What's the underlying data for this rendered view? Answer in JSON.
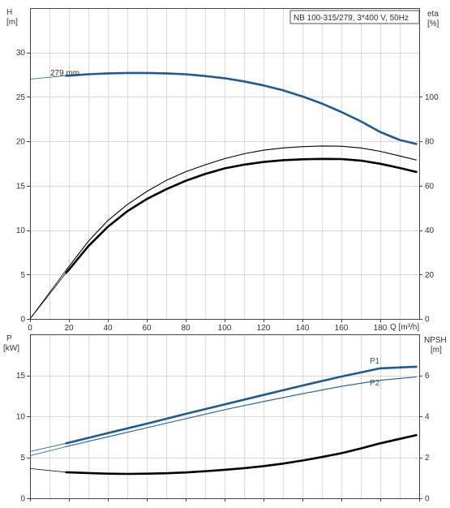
{
  "colors": {
    "blue": "#1f5b92",
    "black": "#000000",
    "grid": "#d9d9d9",
    "text": "#333333"
  },
  "chart_data": [
    {
      "type": "line",
      "title": "NB 100-315/279, 3*400 V, 50Hz",
      "xlabel": "Q [m³/h]",
      "xlim": [
        0,
        200
      ],
      "xticks": [
        0,
        20,
        40,
        60,
        80,
        100,
        120,
        140,
        160,
        180
      ],
      "left_axis": {
        "label_top": "H",
        "label_unit": "[m]",
        "ylim": [
          0,
          35
        ],
        "ticks": [
          0,
          5,
          10,
          15,
          20,
          25,
          30
        ]
      },
      "right_axis": {
        "label_top": "eta",
        "label_unit": "[%]",
        "ylim": [
          0,
          140
        ],
        "ticks": [
          0,
          20,
          40,
          60,
          80,
          100
        ]
      },
      "grid": true,
      "series": [
        {
          "name": "279 mm",
          "axis": "left",
          "color": "blue",
          "style": "bold",
          "x": [
            18.6,
            20,
            30,
            40,
            50,
            60,
            70,
            80,
            90,
            100,
            110,
            120,
            130,
            140,
            150,
            160,
            170,
            180,
            190,
            198.5
          ],
          "y": [
            27.4,
            27.4,
            27.55,
            27.65,
            27.7,
            27.7,
            27.65,
            27.55,
            27.35,
            27.1,
            26.75,
            26.3,
            25.75,
            25.05,
            24.25,
            23.3,
            22.25,
            21.05,
            20.15,
            19.7
          ],
          "ext_x": [
            0,
            18.6
          ],
          "ext_y": [
            27.0,
            27.4
          ]
        },
        {
          "name": "",
          "axis": "right",
          "color": "black",
          "style": "thin",
          "x": [
            18.6,
            20,
            30,
            40,
            50,
            60,
            70,
            80,
            90,
            100,
            110,
            120,
            130,
            140,
            150,
            160,
            170,
            180,
            190,
            198.5
          ],
          "y": [
            22,
            23.6,
            35,
            44.3,
            51.5,
            57.4,
            62.4,
            66.3,
            69.4,
            72.2,
            74.4,
            76,
            77,
            77.6,
            77.9,
            77.8,
            77,
            75.5,
            73.4,
            71.6
          ],
          "ext_x": [
            0,
            18.6
          ],
          "ext_y": [
            0,
            22
          ]
        },
        {
          "name": "",
          "axis": "right",
          "color": "black",
          "style": "bold",
          "x": [
            18.6,
            20,
            30,
            40,
            50,
            60,
            70,
            80,
            90,
            100,
            110,
            120,
            130,
            140,
            150,
            160,
            170,
            180,
            190,
            198.5
          ],
          "y": [
            20.8,
            22.2,
            32.8,
            41.5,
            48.5,
            54,
            58.4,
            62.2,
            65.3,
            67.8,
            69.5,
            70.7,
            71.5,
            71.9,
            72.1,
            72,
            71.3,
            69.9,
            68,
            66.2
          ],
          "ext_x": [
            0,
            18.6
          ],
          "ext_y": [
            0,
            20.8
          ]
        }
      ],
      "annotations": [
        {
          "text": "279 mm",
          "x": 12,
          "y": 27.6
        }
      ]
    },
    {
      "type": "line",
      "xlabel": "",
      "xlim": [
        0,
        200
      ],
      "left_axis": {
        "label_top": "P",
        "label_unit": "[kW]",
        "ylim": [
          0,
          20
        ],
        "ticks": [
          0,
          5,
          10,
          15
        ]
      },
      "right_axis": {
        "label_top": "NPSH",
        "label_unit": "[m]",
        "ylim": [
          0,
          8
        ],
        "ticks": [
          0,
          2,
          4,
          6
        ]
      },
      "grid": true,
      "series": [
        {
          "name": "P1",
          "axis": "left",
          "color": "blue",
          "style": "bold",
          "x": [
            18.6,
            40,
            60,
            80,
            100,
            120,
            140,
            160,
            180,
            198.5
          ],
          "y": [
            6.7,
            7.95,
            9.1,
            10.3,
            11.45,
            12.6,
            13.75,
            14.85,
            15.85,
            16.05
          ],
          "ext_x": [
            0,
            18.6
          ],
          "ext_y": [
            5.7,
            6.7
          ]
        },
        {
          "name": "P2",
          "axis": "left",
          "color": "blue",
          "style": "thin",
          "x": [
            18.6,
            40,
            60,
            80,
            100,
            120,
            140,
            160,
            180,
            198.5
          ],
          "y": [
            6.3,
            7.5,
            8.6,
            9.7,
            10.8,
            11.8,
            12.75,
            13.65,
            14.4,
            14.8
          ],
          "ext_x": [
            0,
            18.6
          ],
          "ext_y": [
            5.2,
            6.3
          ]
        },
        {
          "name": "",
          "axis": "right",
          "color": "black",
          "style": "bold",
          "x": [
            18.6,
            30,
            40,
            50,
            60,
            70,
            80,
            90,
            100,
            110,
            120,
            130,
            140,
            150,
            160,
            170,
            180,
            190,
            198.5
          ],
          "y": [
            1.27,
            1.23,
            1.2,
            1.19,
            1.2,
            1.22,
            1.26,
            1.32,
            1.39,
            1.47,
            1.57,
            1.69,
            1.84,
            2.01,
            2.2,
            2.43,
            2.68,
            2.9,
            3.08
          ],
          "ext_x": [
            0,
            18.6
          ],
          "ext_y": [
            1.45,
            1.27
          ]
        }
      ],
      "annotations": [
        {
          "text": "P1",
          "x": 193,
          "y": 16.8
        },
        {
          "text": "P2",
          "x": 193,
          "y": 14.2
        }
      ]
    }
  ]
}
